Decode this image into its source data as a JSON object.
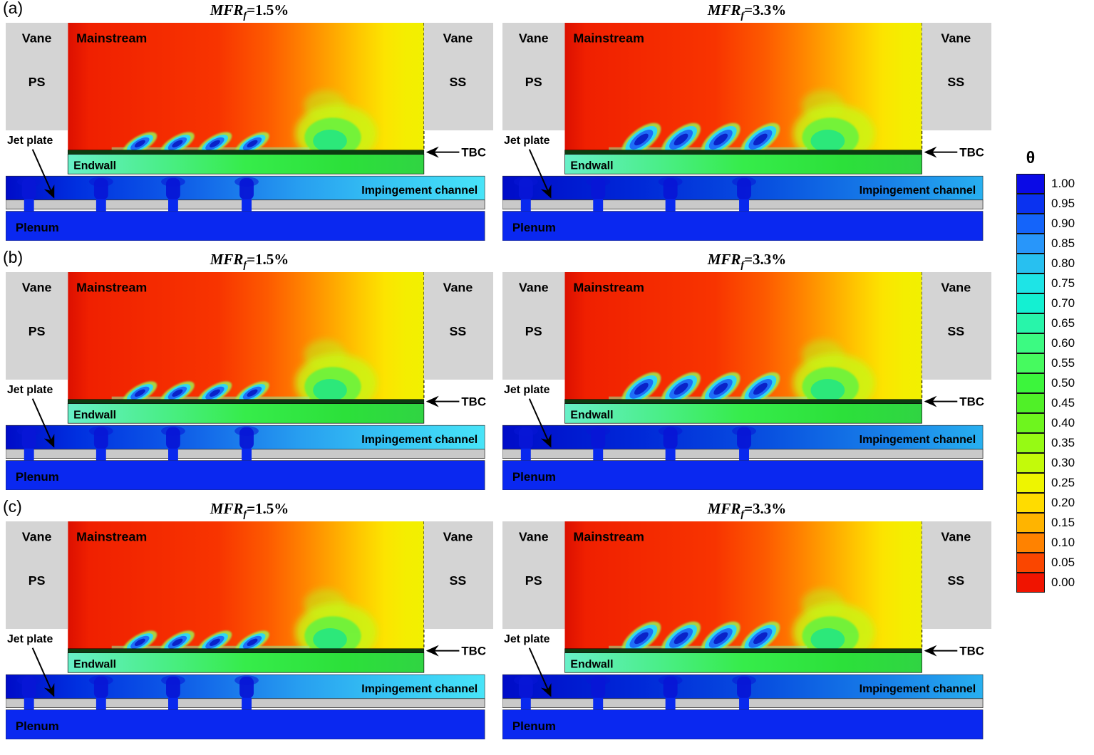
{
  "figure": {
    "rows": [
      {
        "label": "(a)",
        "panels": [
          {
            "mfr": "1.5",
            "title": {
              "name": "MFR",
              "sub": "f",
              "eq": "=1.5%"
            }
          },
          {
            "mfr": "3.3",
            "title": {
              "name": "MFR",
              "sub": "f",
              "eq": "=3.3%"
            }
          }
        ]
      },
      {
        "label": "(b)",
        "panels": [
          {
            "mfr": "1.5",
            "title": {
              "name": "MFR",
              "sub": "f",
              "eq": "=1.5%"
            }
          },
          {
            "mfr": "3.3",
            "title": {
              "name": "MFR",
              "sub": "f",
              "eq": "=3.3%"
            }
          }
        ]
      },
      {
        "label": "(c)",
        "panels": [
          {
            "mfr": "1.5",
            "title": {
              "name": "MFR",
              "sub": "f",
              "eq": "=1.5%"
            }
          },
          {
            "mfr": "3.3",
            "title": {
              "name": "MFR",
              "sub": "f",
              "eq": "=3.3%"
            }
          }
        ]
      }
    ],
    "panel_labels": {
      "vane": "Vane",
      "ps": "PS",
      "ss": "SS",
      "mainstream": "Mainstream",
      "jet_plate": "Jet plate",
      "endwall": "Endwall",
      "tbc": "TBC",
      "impingement_channel": "Impingement channel",
      "plenum": "Plenum"
    }
  },
  "colorbar": {
    "symbol": "θ",
    "ticks": [
      "1.00",
      "0.95",
      "0.90",
      "0.85",
      "0.80",
      "0.75",
      "0.70",
      "0.65",
      "0.60",
      "0.55",
      "0.50",
      "0.45",
      "0.40",
      "0.35",
      "0.30",
      "0.25",
      "0.20",
      "0.15",
      "0.10",
      "0.05",
      "0.00"
    ],
    "colors": [
      "#0A0AE6",
      "#0A32F0",
      "#1464FA",
      "#2896FA",
      "#28C0F0",
      "#1EE4E6",
      "#14F0D2",
      "#28F5AA",
      "#3CFA82",
      "#46FA5F",
      "#3CF53C",
      "#50F028",
      "#6EF51E",
      "#96FA14",
      "#C3FA0A",
      "#EEF500",
      "#FFDC00",
      "#FFB400",
      "#FF8200",
      "#FA4600",
      "#F01400"
    ]
  },
  "palette": {
    "vane_gray": "#D4D4D4",
    "mainstream_hot_red": "#F02000",
    "mainstream_yellow": "#F2F000",
    "endwall_green": "#36EC4A",
    "impingement_cyan": "#48E4F8",
    "plenum_blue": "#0A28F0",
    "tbc_dark": "#0B3B10"
  }
}
